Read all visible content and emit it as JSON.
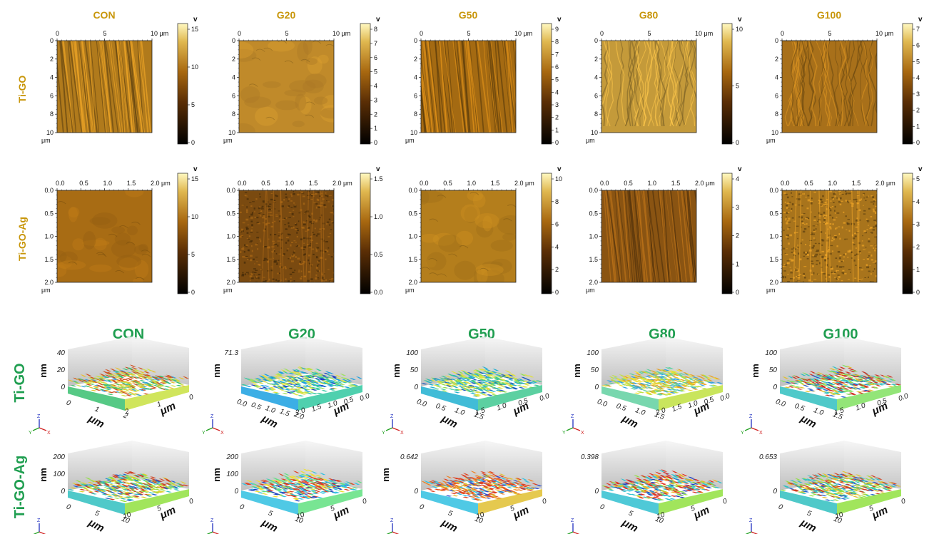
{
  "samples": [
    "CON",
    "G20",
    "G50",
    "G80",
    "G100"
  ],
  "row_labels_2d": [
    "Ti-GO",
    "Ti-GO-Ag"
  ],
  "row_labels_3d": [
    "Ti-GO",
    "Ti-GO-Ag"
  ],
  "colorbar_unit": "v",
  "axis_unit": "μm",
  "z_unit": "nm",
  "colors": {
    "header_gold": "#c8960a",
    "header_green": "#1f9e50"
  },
  "panels_2d_row1": [
    {
      "name": "CON",
      "x_ticks": [
        "0",
        "5",
        "10 μm"
      ],
      "y_ticks": [
        "0",
        "2",
        "4",
        "6",
        "8",
        "10"
      ],
      "cbar_ticks": [
        "15",
        "10",
        "5",
        "0"
      ],
      "base": "#b07a1c",
      "texture": "streaks"
    },
    {
      "name": "G20",
      "x_ticks": [
        "0",
        "5",
        "10 μm"
      ],
      "y_ticks": [
        "0",
        "2",
        "4",
        "6",
        "8",
        "10"
      ],
      "cbar_ticks": [
        "8",
        "7",
        "6",
        "5",
        "4",
        "3",
        "2",
        "1",
        "0"
      ],
      "base": "#c08a2a",
      "texture": "smooth"
    },
    {
      "name": "G50",
      "x_ticks": [
        "0",
        "5",
        "10 μm"
      ],
      "y_ticks": [
        "0",
        "2",
        "4",
        "6",
        "8",
        "10"
      ],
      "cbar_ticks": [
        "9",
        "8",
        "7",
        "6",
        "5",
        "4",
        "3",
        "2",
        "1",
        "0"
      ],
      "base": "#a46a12",
      "texture": "streaks"
    },
    {
      "name": "G80",
      "x_ticks": [
        "0",
        "5",
        "10 μm"
      ],
      "y_ticks": [
        "0",
        "2",
        "4",
        "6",
        "8",
        "10"
      ],
      "cbar_ticks": [
        "10",
        "5",
        "0"
      ],
      "base": "#c49a3a",
      "texture": "waves"
    },
    {
      "name": "G100",
      "x_ticks": [
        "0",
        "5",
        "10 μm"
      ],
      "y_ticks": [
        "0",
        "2",
        "4",
        "6",
        "8",
        "10"
      ],
      "cbar_ticks": [
        "7",
        "6",
        "5",
        "4",
        "3",
        "2",
        "1",
        "0"
      ],
      "base": "#a8701a",
      "texture": "waves"
    }
  ],
  "panels_2d_row2": [
    {
      "name": "CON",
      "x_ticks": [
        "0.0",
        "0.5",
        "1.0",
        "1.5",
        "2.0 μm"
      ],
      "y_ticks": [
        "0.0",
        "0.5",
        "1.0",
        "1.5",
        "2.0"
      ],
      "cbar_ticks": [
        "15",
        "10",
        "5",
        "0"
      ],
      "base": "#a86c14",
      "texture": "smooth"
    },
    {
      "name": "G20",
      "x_ticks": [
        "0.0",
        "0.5",
        "1.0",
        "1.5",
        "2.0 μm"
      ],
      "y_ticks": [
        "0.0",
        "0.5",
        "1.0",
        "1.5",
        "2.0"
      ],
      "cbar_ticks": [
        "1.5",
        "1.0",
        "0.5",
        "0.0"
      ],
      "base": "#7a4a10",
      "texture": "grain"
    },
    {
      "name": "G50",
      "x_ticks": [
        "0.0",
        "0.5",
        "1.0",
        "1.5",
        "2.0 μm"
      ],
      "y_ticks": [
        "0.0",
        "0.5",
        "1.0",
        "1.5",
        "2.0"
      ],
      "cbar_ticks": [
        "10",
        "8",
        "6",
        "4",
        "2",
        "0"
      ],
      "base": "#b47e1c",
      "texture": "smooth"
    },
    {
      "name": "G80",
      "x_ticks": [
        "0.0",
        "0.5",
        "1.0",
        "1.5",
        "2.0 μm"
      ],
      "y_ticks": [
        "0.0",
        "0.5",
        "1.0",
        "1.5",
        "2.0"
      ],
      "cbar_ticks": [
        "4",
        "3",
        "2",
        "1",
        "0"
      ],
      "base": "#8a5412",
      "texture": "streaks"
    },
    {
      "name": "G100",
      "x_ticks": [
        "0.0",
        "0.5",
        "1.0",
        "1.5",
        "2.0 μm"
      ],
      "y_ticks": [
        "0.0",
        "0.5",
        "1.0",
        "1.5",
        "2.0"
      ],
      "cbar_ticks": [
        "5",
        "4",
        "3",
        "2",
        "1",
        "0"
      ],
      "base": "#a8741c",
      "texture": "grain"
    }
  ],
  "panels_3d_row1": [
    {
      "name": "CON",
      "z_ticks": [
        "40",
        "20",
        "0"
      ],
      "x_ticks": [
        "0",
        "1",
        "2"
      ],
      "y_ticks": [
        "2",
        "1",
        "0"
      ],
      "palette": [
        "#3aa0d8",
        "#38c070",
        "#c8e040",
        "#e8c030",
        "#d05020"
      ]
    },
    {
      "name": "G20",
      "z_ticks": [
        "71.3"
      ],
      "x_ticks": [
        "0.0",
        "0.5",
        "1.0",
        "1.5",
        "2.0"
      ],
      "y_ticks": [
        "2.0",
        "1.5",
        "1.0",
        "0.5",
        "0.0"
      ],
      "palette": [
        "#1a3ac0",
        "#1aa0e0",
        "#30c8a0",
        "#a0e060",
        "#e0e040"
      ]
    },
    {
      "name": "G50",
      "z_ticks": [
        "100",
        "50",
        "0"
      ],
      "x_ticks": [
        "0.0",
        "0.5",
        "1.0",
        "1.5"
      ],
      "y_ticks": [
        "1.5",
        "1.0",
        "0.5",
        "0.0"
      ],
      "palette": [
        "#1a5ac0",
        "#20b0d0",
        "#40c890",
        "#90e050",
        "#e0e040"
      ]
    },
    {
      "name": "G80",
      "z_ticks": [
        "100",
        "50",
        "0"
      ],
      "x_ticks": [
        "0.0",
        "0.5",
        "1.0",
        "1.5"
      ],
      "y_ticks": [
        "2.0",
        "1.5",
        "1.0",
        "0.5",
        "0.0"
      ],
      "palette": [
        "#30a0e0",
        "#60d0a0",
        "#c0e040",
        "#f0e030",
        "#e8a020"
      ]
    },
    {
      "name": "G100",
      "z_ticks": [
        "100",
        "50",
        "0"
      ],
      "x_ticks": [
        "0.0",
        "0.5",
        "1.0",
        "1.5"
      ],
      "y_ticks": [
        "1.5",
        "1.0",
        "0.5",
        "0.0"
      ],
      "palette": [
        "#2060d0",
        "#30c0c0",
        "#80e060",
        "#e0c030",
        "#d03020"
      ]
    }
  ],
  "panels_3d_row2": [
    {
      "name": "CON",
      "z_ticks": [
        "200",
        "100",
        "0"
      ],
      "x_ticks": [
        "0",
        "5",
        "10"
      ],
      "y_ticks": [
        "10",
        "5",
        "0"
      ],
      "palette": [
        "#2060d0",
        "#30c0c0",
        "#90e040",
        "#e0d030",
        "#d04020"
      ]
    },
    {
      "name": "G20",
      "z_ticks": [
        "200",
        "100",
        "0"
      ],
      "x_ticks": [
        "0",
        "5",
        "10"
      ],
      "y_ticks": [
        "10",
        "5",
        "0"
      ],
      "palette": [
        "#2040c0",
        "#30c0e0",
        "#60e080",
        "#f0e030",
        "#e04020"
      ]
    },
    {
      "name": "G50",
      "z_ticks": [
        "0.642",
        "0"
      ],
      "x_ticks": [
        "0",
        "5",
        "10"
      ],
      "y_ticks": [
        "10",
        "5",
        "0"
      ],
      "palette": [
        "#3050d0",
        "#30c0e0",
        "#e0c030",
        "#f08020",
        "#e04020"
      ]
    },
    {
      "name": "G80",
      "z_ticks": [
        "0.398",
        "0"
      ],
      "x_ticks": [
        "0",
        "5",
        "10"
      ],
      "y_ticks": [
        "10",
        "5",
        "0"
      ],
      "palette": [
        "#2040c0",
        "#30c0d0",
        "#90e040",
        "#f0b020",
        "#e03020"
      ]
    },
    {
      "name": "G100",
      "z_ticks": [
        "0.653",
        "0"
      ],
      "x_ticks": [
        "0",
        "5",
        "10"
      ],
      "y_ticks": [
        "10",
        "5",
        "0"
      ],
      "palette": [
        "#2060d0",
        "#30c0c0",
        "#90e040",
        "#e0c030",
        "#d04020"
      ]
    }
  ],
  "axis_triad": {
    "z": "Z",
    "y": "Y",
    "x": "X"
  }
}
